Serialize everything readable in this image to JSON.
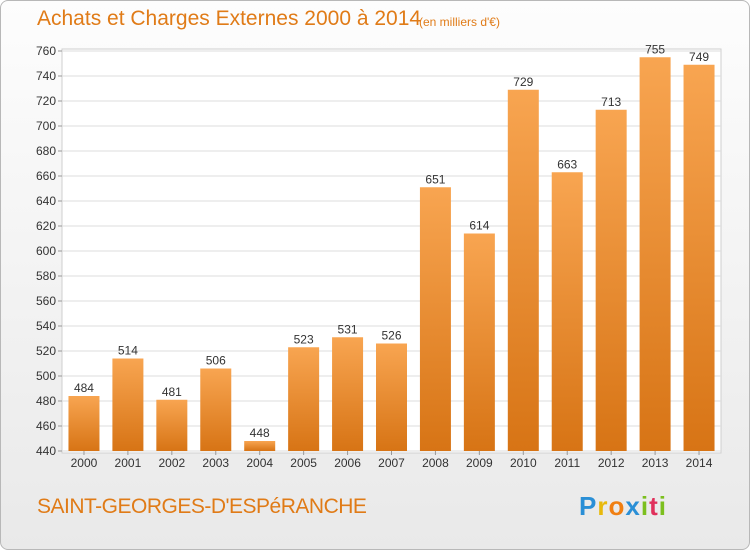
{
  "header": {
    "title": "Achats et Charges Externes 2000 à 2014",
    "subtitle": "(en milliers d'€)"
  },
  "footer": {
    "town": "SAINT-GEORGES-D'ESPéRANCHE",
    "logo_letters": [
      "P",
      "r",
      "o",
      "x",
      "i",
      "t",
      "i"
    ],
    "logo_colors": [
      "#2a8fd6",
      "#e8b90c",
      "#f07f12",
      "#2a8fd6",
      "#7cbf1e",
      "#e0305b",
      "#7cbf1e"
    ]
  },
  "chart_data": {
    "type": "bar",
    "title": "Achats et Charges Externes 2000 à 2014",
    "subtitle": "(en milliers d'€)",
    "categories": [
      "2000",
      "2001",
      "2002",
      "2003",
      "2004",
      "2005",
      "2006",
      "2007",
      "2008",
      "2009",
      "2010",
      "2011",
      "2012",
      "2013",
      "2014"
    ],
    "values": [
      484,
      514,
      481,
      506,
      448,
      523,
      531,
      526,
      651,
      614,
      729,
      663,
      713,
      755,
      749
    ],
    "ylim": [
      440,
      760
    ],
    "yticks": [
      440,
      460,
      480,
      500,
      520,
      540,
      560,
      580,
      600,
      620,
      640,
      660,
      680,
      700,
      720,
      740,
      760
    ],
    "grid": true,
    "colors": {
      "bar_top": "#f8a551",
      "bar_bottom": "#d77415",
      "grid": "#dcdcdc",
      "axis_text": "#333333",
      "title": "#e07b17"
    }
  }
}
